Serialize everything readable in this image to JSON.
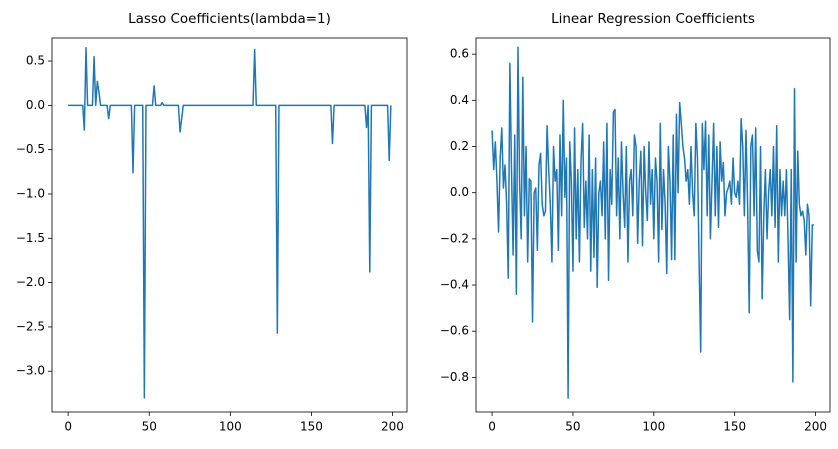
{
  "chart_data": [
    {
      "type": "line",
      "title": "Lasso Coefficients(lambda=1)",
      "color": "#1f77b4",
      "xlim": [
        -9.95,
        208.95
      ],
      "xticks": [
        0,
        50,
        100,
        150,
        200
      ],
      "ylim": [
        -3.46,
        0.76
      ],
      "yticks": [
        0.5,
        {
          "value": 0,
          "label": "0.0"
        },
        {
          "value": -0.5,
          "label": "−0.5"
        },
        {
          "value": -1,
          "label": "−1.0"
        },
        {
          "value": -1.5,
          "label": "−1.5"
        },
        {
          "value": -2,
          "label": "−2.0"
        },
        {
          "value": -2.5,
          "label": "−2.5"
        },
        {
          "value": -3,
          "label": "−3.0"
        }
      ],
      "values": [
        0,
        0,
        0,
        0,
        0,
        0,
        0,
        0,
        0,
        0,
        -0.28,
        0.65,
        0,
        0,
        0,
        0,
        0.55,
        0,
        0.27,
        0.15,
        0,
        0,
        0,
        0,
        0,
        -0.15,
        0,
        0,
        0,
        0,
        0,
        0,
        0,
        0,
        0,
        0,
        0,
        0,
        0,
        0,
        -0.76,
        0,
        0,
        0,
        0,
        0,
        0,
        -3.3,
        0,
        0,
        0,
        0,
        0,
        0.22,
        0,
        0,
        0,
        0,
        0.03,
        0,
        0,
        0,
        0,
        0,
        0,
        0,
        0,
        0,
        0,
        -0.3,
        -0.15,
        0,
        0,
        0,
        0,
        0,
        0,
        0,
        0,
        0,
        0,
        0,
        0,
        0,
        0,
        0,
        0,
        0,
        0,
        0,
        0,
        0,
        0,
        0,
        0,
        0,
        0,
        0,
        0,
        0,
        0,
        0,
        0,
        0,
        0,
        0,
        0,
        0,
        0,
        0,
        0,
        0,
        0,
        0,
        0,
        0.63,
        0,
        0,
        0,
        0,
        0,
        0,
        0,
        0,
        0,
        0,
        0,
        0,
        0,
        -2.57,
        0,
        0,
        0,
        0,
        0,
        0,
        0,
        0,
        0,
        0,
        0,
        0,
        0,
        0,
        0,
        0,
        0,
        0,
        0,
        0,
        0,
        0,
        0,
        0,
        0,
        0,
        0,
        0,
        0,
        0,
        0,
        0,
        0,
        -0.43,
        0,
        0,
        0,
        0,
        0,
        0,
        0,
        0,
        0,
        0,
        0,
        0,
        0,
        0,
        0,
        0,
        0,
        0,
        0,
        0,
        -0.25,
        0,
        -1.88,
        0,
        0,
        0,
        0,
        0,
        0,
        0,
        0,
        0,
        0,
        0,
        -0.62,
        0
      ]
    },
    {
      "type": "line",
      "title": "Linear Regression Coefficients",
      "color": "#1f77b4",
      "xlim": [
        -9.95,
        208.95
      ],
      "xticks": [
        0,
        50,
        100,
        150,
        200
      ],
      "ylim": [
        -0.95,
        0.67
      ],
      "yticks": [
        0.6,
        0.4,
        0.2,
        {
          "value": 0,
          "label": "0.0"
        },
        {
          "value": -0.2,
          "label": "−0.2"
        },
        {
          "value": -0.4,
          "label": "−0.4"
        },
        {
          "value": -0.6,
          "label": "−0.6"
        },
        {
          "value": -0.8,
          "label": "−0.8"
        }
      ],
      "values": [
        0.27,
        0.1,
        0.22,
        0.05,
        -0.17,
        0.15,
        0.28,
        0.02,
        0.12,
        -0.05,
        -0.37,
        0.56,
        0.1,
        -0.27,
        0.25,
        -0.44,
        0.63,
        0.05,
        -0.2,
        0.5,
        -0.1,
        0.2,
        -0.3,
        0.06,
        0.05,
        -0.56,
        0.0,
        0.02,
        -0.25,
        0.12,
        0.17,
        -0.05,
        -0.1,
        -0.08,
        0.29,
        0.1,
        -0.05,
        -0.3,
        0.2,
        0.05,
        0.1,
        -0.25,
        0.25,
        -0.1,
        0.4,
        -0.02,
        0.15,
        -0.89,
        0.22,
        0.05,
        -0.34,
        0.28,
        -0.2,
        0.1,
        -0.3,
        0.14,
        0.3,
        -0.15,
        0.05,
        -0.2,
        0.25,
        -0.34,
        0.1,
        -0.28,
        0.15,
        -0.41,
        0.0,
        0.05,
        -0.1,
        0.22,
        -0.2,
        0.3,
        -0.38,
        0.1,
        -0.05,
        0.35,
        0.36,
        -0.1,
        0.15,
        -0.2,
        0.22,
        0.0,
        -0.15,
        0.2,
        -0.3,
        0.05,
        0.1,
        -0.1,
        0.25,
        0.2,
        -0.22,
        0.05,
        0.18,
        -0.23,
        0.2,
        0.0,
        -0.12,
        0.22,
        -0.05,
        0.1,
        -0.2,
        0.15,
        0.05,
        -0.3,
        0.3,
        -0.16,
        0.1,
        -0.05,
        -0.35,
        0.2,
        0.05,
        -0.29,
        0.25,
        -0.29,
        0.34,
        0.0,
        0.39,
        0.3,
        0.2,
        0.15,
        0.05,
        0.1,
        -0.05,
        0.2,
        0.0,
        -0.1,
        0.3,
        0.15,
        -0.3,
        -0.69,
        0.3,
        0.1,
        0.31,
        -0.1,
        0.25,
        -0.2,
        0.05,
        0.3,
        -0.1,
        0.2,
        -0.15,
        0.22,
        0.05,
        0.13,
        -0.1,
        0.0,
        0.02,
        0.05,
        -0.05,
        0.15,
        0.0,
        -0.02,
        0.05,
        -0.05,
        0.32,
        0.2,
        -0.1,
        0.27,
        -0.05,
        -0.52,
        0.2,
        0.25,
        -0.1,
        0.28,
        -0.25,
        -0.3,
        0.2,
        -0.46,
        -0.1,
        0.1,
        -0.2,
        0.0,
        0.1,
        -0.1,
        0.2,
        -0.15,
        0.29,
        -0.3,
        0.1,
        -0.1,
        0.05,
        -0.1,
        0.1,
        -0.2,
        -0.55,
        0.1,
        -0.82,
        0.45,
        -0.3,
        0.18,
        -0.05,
        -0.1,
        -0.08,
        -0.12,
        -0.27,
        -0.05,
        -0.1,
        -0.49,
        -0.14,
        -0.14
      ]
    }
  ]
}
